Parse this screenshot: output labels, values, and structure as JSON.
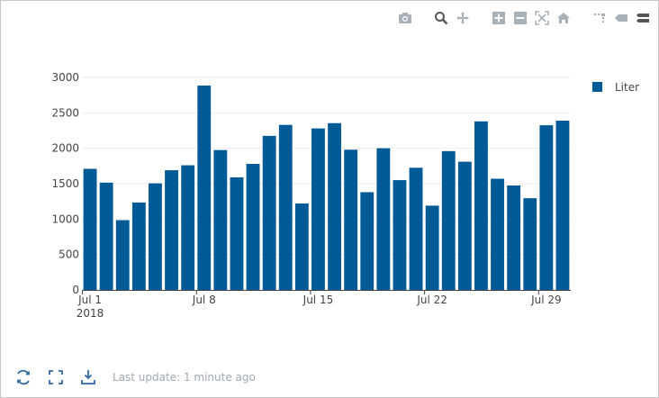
{
  "footer": {
    "last_update": "Last update: 1 minute ago"
  },
  "icons": {
    "modebar": [
      "camera-icon",
      "zoom-icon",
      "pan-icon",
      "zoom-in-icon",
      "zoom-out-icon",
      "autoscale-icon",
      "reset-axes-icon",
      "spike-lines-icon",
      "hover-closest-icon",
      "hover-compare-icon"
    ],
    "footer": [
      "refresh-icon",
      "fullscreen-icon",
      "download-icon"
    ]
  },
  "colors": {
    "bar": "#005a96",
    "grid": "#eeeeee",
    "axis": "#444444",
    "icon": "#a8b0b8",
    "footer_icon": "#2f6aa3"
  },
  "chart_data": {
    "type": "bar",
    "x": [
      "2018-07-01",
      "2018-07-02",
      "2018-07-03",
      "2018-07-04",
      "2018-07-05",
      "2018-07-06",
      "2018-07-07",
      "2018-07-08",
      "2018-07-09",
      "2018-07-10",
      "2018-07-11",
      "2018-07-12",
      "2018-07-13",
      "2018-07-14",
      "2018-07-15",
      "2018-07-16",
      "2018-07-17",
      "2018-07-18",
      "2018-07-19",
      "2018-07-20",
      "2018-07-21",
      "2018-07-22",
      "2018-07-23",
      "2018-07-24",
      "2018-07-25",
      "2018-07-26",
      "2018-07-27",
      "2018-07-28",
      "2018-07-29",
      "2018-07-30"
    ],
    "series": [
      {
        "name": "Liter",
        "values": [
          1710,
          1515,
          985,
          1235,
          1505,
          1690,
          1760,
          2885,
          1975,
          1590,
          1780,
          2175,
          2330,
          1220,
          2280,
          2355,
          1980,
          1380,
          2000,
          1550,
          1725,
          1190,
          1960,
          1810,
          2380,
          1570,
          1475,
          1295,
          2325,
          2390
        ]
      }
    ],
    "x_ticks": [
      {
        "date": "2018-07-01",
        "label": "Jul 1",
        "sublabel": "2018"
      },
      {
        "date": "2018-07-08",
        "label": "Jul 8",
        "sublabel": ""
      },
      {
        "date": "2018-07-15",
        "label": "Jul 15",
        "sublabel": ""
      },
      {
        "date": "2018-07-22",
        "label": "Jul 22",
        "sublabel": ""
      },
      {
        "date": "2018-07-29",
        "label": "Jul 29",
        "sublabel": ""
      }
    ],
    "y_ticks": [
      0,
      500,
      1000,
      1500,
      2000,
      2500,
      3000
    ],
    "ylim": [
      0,
      3000
    ],
    "title": "",
    "xlabel": "",
    "ylabel": "",
    "grid": true,
    "legend": "right"
  }
}
